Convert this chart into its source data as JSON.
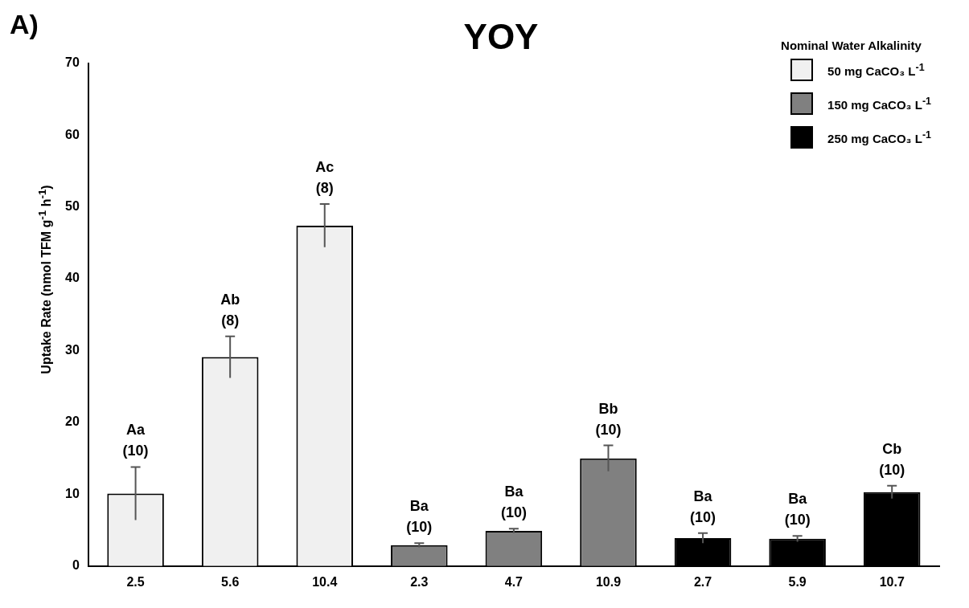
{
  "chart_data": {
    "type": "bar",
    "title": "YOY",
    "ylabel": "Uptake Rate (nmol TFM g$^{-1}$ h$^{-1}$)",
    "legend_title": "Nominal Water Alkalinity",
    "categories": [
      "2.5",
      "5.6",
      "10.4",
      "2.3",
      "4.7",
      "10.9",
      "2.7",
      "5.9",
      "10.7"
    ],
    "series": [
      {
        "name": "50 mg CaCO₃ L$^{-1}$",
        "color": "#f0f0f0",
        "values": [
          10.1,
          29.1,
          47.4,
          null,
          null,
          null,
          null,
          null,
          null
        ],
        "errors": [
          3.7,
          2.9,
          3.0,
          null,
          null,
          null,
          null,
          null,
          null
        ]
      },
      {
        "name": "150 mg CaCO₃ L$^{-1}$",
        "color": "#808080",
        "values": [
          null,
          null,
          null,
          2.9,
          4.9,
          15.0,
          null,
          null,
          null
        ],
        "errors": [
          null,
          null,
          null,
          0.3,
          0.3,
          1.8,
          null,
          null,
          null
        ]
      },
      {
        "name": "250 mg CaCO₃ L$^{-1}$",
        "color": "#000000",
        "values": [
          null,
          null,
          null,
          null,
          null,
          null,
          3.9,
          3.8,
          10.3
        ],
        "errors": [
          null,
          null,
          null,
          null,
          null,
          null,
          0.7,
          0.4,
          0.9
        ]
      }
    ],
    "ylim": [
      0,
      70
    ],
    "yticks": [
      0,
      10,
      20,
      30,
      40,
      50,
      60,
      70
    ],
    "grid": false,
    "legend": "top right",
    "annotations": [
      "A)",
      {
        "text": "Aa\n(10)",
        "x": "2.5",
        "y": 13.8
      },
      {
        "text": "Ab\n(8)",
        "x": "5.6",
        "y": 32.0
      },
      {
        "text": "Ac\n(8)",
        "x": "10.4",
        "y": 50.4
      },
      {
        "text": "Ba\n(10)",
        "x": "2.3",
        "y": 3.2
      },
      {
        "text": "Ba\n(10)",
        "x": "4.7",
        "y": 5.2
      },
      {
        "text": "Bb\n(10)",
        "x": "10.9",
        "y": 16.8
      },
      {
        "text": "Ba\n(10)",
        "x": "2.7",
        "y": 4.6
      },
      {
        "text": "Ba\n(10)",
        "x": "5.9",
        "y": 4.2
      },
      {
        "text": "Cb\n(10)",
        "x": "10.7",
        "y": 11.2
      }
    ]
  }
}
